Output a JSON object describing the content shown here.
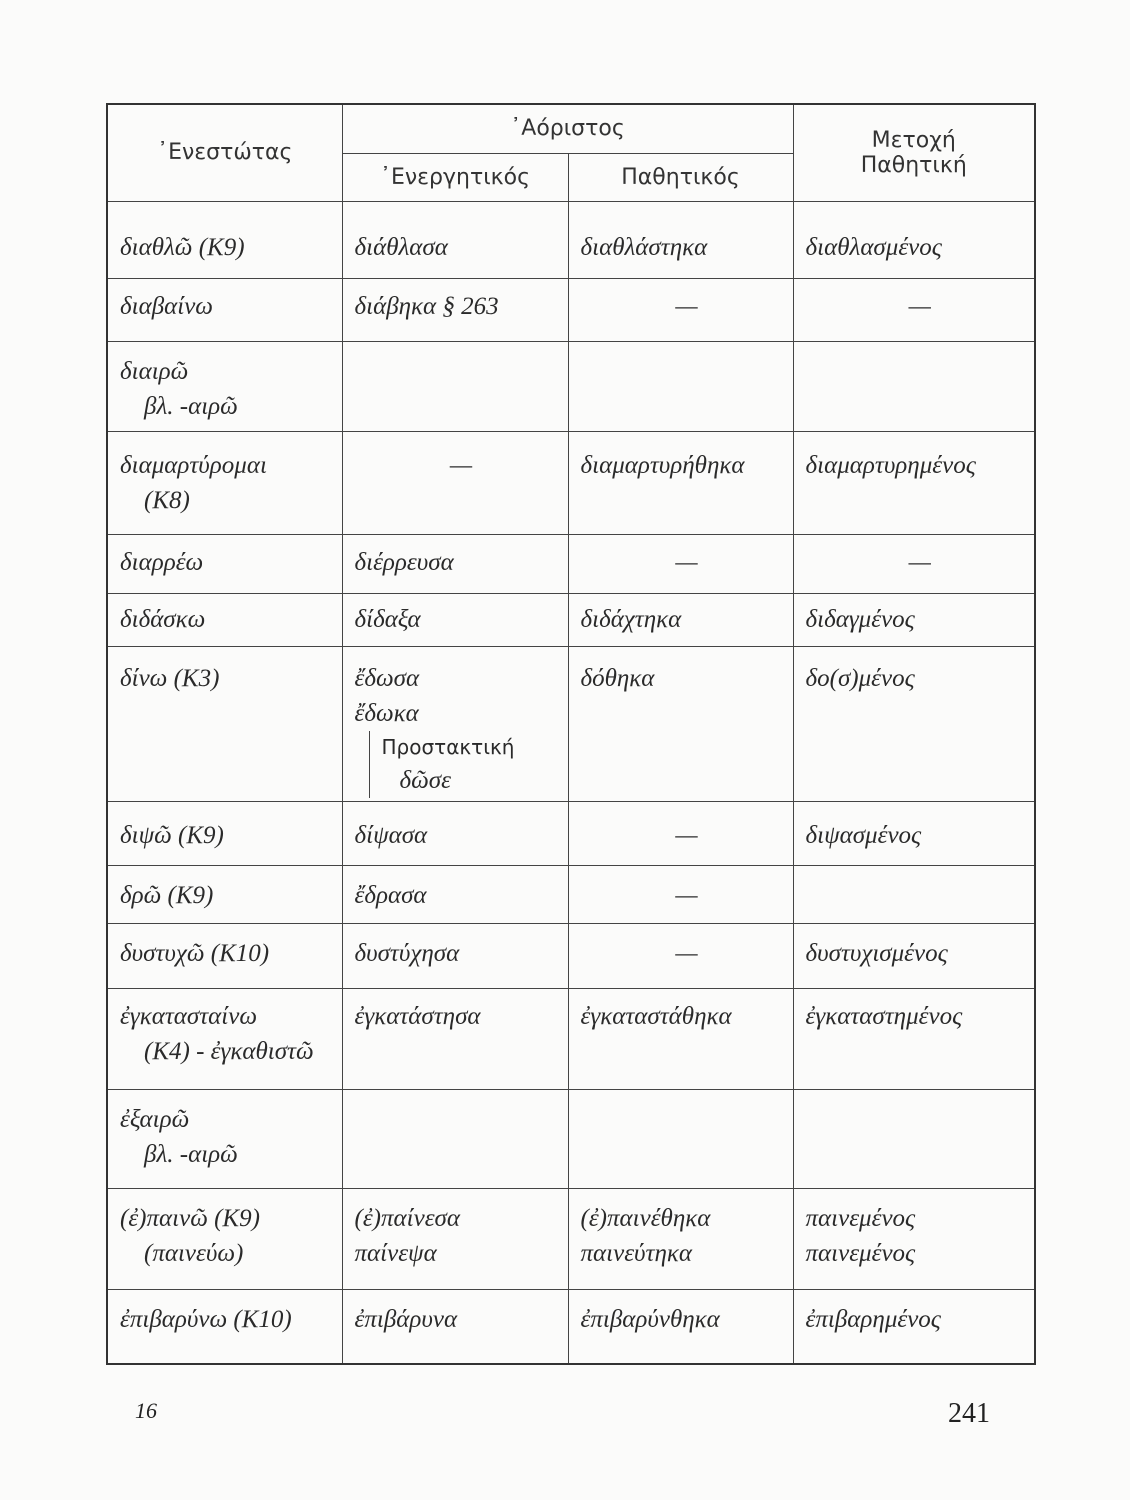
{
  "header": {
    "present": "᾽Ενεστώτας",
    "aorist": "᾽Αόριστος",
    "active": "᾽Ενεργητικός",
    "passive": "Παθητικός",
    "participle_line1": "Μετοχή",
    "participle_line2": "Παθητική"
  },
  "rows": [
    {
      "cells": [
        [
          "διαθλῶ (Κ9)"
        ],
        [
          "διάθλασα"
        ],
        [
          "διαθλάστηκα"
        ],
        [
          "διαθλασμένος"
        ]
      ]
    },
    {
      "cells": [
        [
          "διαβαίνω"
        ],
        [
          "διάβηκα  § 263"
        ],
        [
          "—"
        ],
        [
          "—"
        ]
      ]
    },
    {
      "cells": [
        [
          "διαιρῶ",
          "βλ. -αιρῶ"
        ],
        [],
        [],
        []
      ]
    },
    {
      "cells": [
        [
          "διαμαρτύρομαι",
          "(Κ8)"
        ],
        [
          "—"
        ],
        [
          "διαμαρτυρήθηκα"
        ],
        [
          "διαμαρτυρημένος"
        ]
      ]
    },
    {
      "cells": [
        [
          "διαρρέω"
        ],
        [
          "διέρρευσα"
        ],
        [
          "—"
        ],
        [
          "—"
        ]
      ]
    },
    {
      "cells": [
        [
          "διδάσκω"
        ],
        [
          "δίδαξα"
        ],
        [
          "διδάχτηκα"
        ],
        [
          "διδαγμένος"
        ]
      ]
    },
    {
      "cells": [
        [
          "δίνω (Κ3)"
        ],
        [
          "ἔδωσα",
          "ἔδωκα"
        ],
        [
          "δόθηκα"
        ],
        [
          "δο(σ)μένος"
        ]
      ],
      "imperative": {
        "label": "Προστακτική",
        "form": "δῶσε"
      }
    },
    {
      "cells": [
        [
          "διψῶ (Κ9)"
        ],
        [
          "δίψασα"
        ],
        [
          "—"
        ],
        [
          "διψασμένος"
        ]
      ]
    },
    {
      "cells": [
        [
          "δρῶ (Κ9)"
        ],
        [
          "ἔδρασα"
        ],
        [
          "—"
        ],
        []
      ]
    },
    {
      "cells": [
        [
          "δυστυχῶ  (Κ10)"
        ],
        [
          "δυστύχησα"
        ],
        [
          "—"
        ],
        [
          "δυστυχισμένος"
        ]
      ]
    },
    {
      "cells": [
        [
          "ἐγκατασταίνω",
          "(Κ4) - ἐγκαθιστῶ"
        ],
        [
          "ἐγκατάστησα"
        ],
        [
          "ἐγκαταστάθηκα"
        ],
        [
          "ἐγκαταστημένος"
        ]
      ]
    },
    {
      "cells": [
        [
          "ἐξαιρῶ",
          "βλ. -αιρῶ"
        ],
        [],
        [],
        []
      ]
    },
    {
      "cells": [
        [
          "(ἐ)παινῶ (Κ9)",
          "(παινεύω)"
        ],
        [
          "(ἐ)παίνεσα",
          "παίνεψα"
        ],
        [
          "(ἐ)παινέθηκα",
          "παινεύτηκα"
        ],
        [
          "παινεμένος",
          "παινεμένος"
        ]
      ]
    },
    {
      "cells": [
        [
          "ἐπιβαρύνω (Κ10)"
        ],
        [
          "ἐπιβάρυνα"
        ],
        [
          "ἐπιβαρύνθηκα"
        ],
        [
          "ἐπιβαρημένος"
        ]
      ]
    }
  ],
  "footer": {
    "left_number": "16",
    "right_number": "241"
  }
}
